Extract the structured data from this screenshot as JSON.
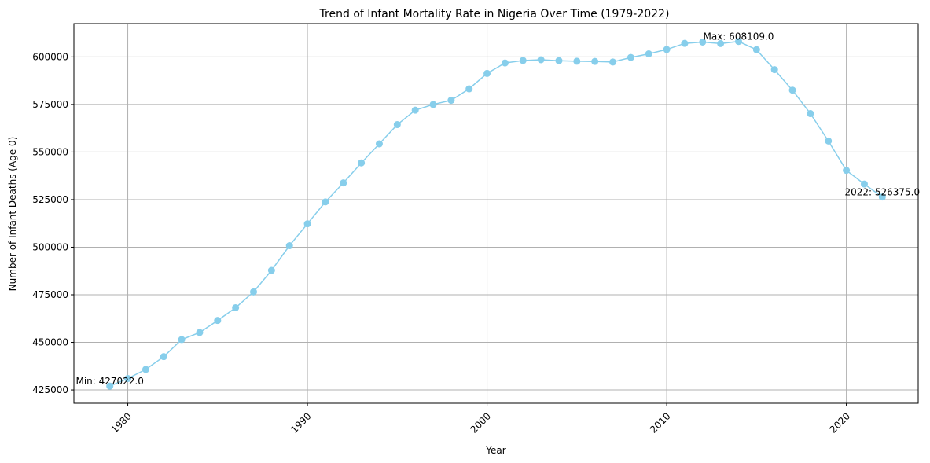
{
  "chart_data": {
    "type": "line",
    "title": "Trend of Infant Mortality Rate in Nigeria Over Time (1979-2022)",
    "xlabel": "Year",
    "ylabel": "Number of Infant Deaths (Age 0)",
    "xlim": [
      1977.0,
      2024.0
    ],
    "ylim": [
      418000,
      617500
    ],
    "xticks": [
      1980,
      1990,
      2000,
      2010,
      2020
    ],
    "yticks": [
      425000,
      450000,
      475000,
      500000,
      525000,
      550000,
      575000,
      600000
    ],
    "grid": true,
    "color": "#87ceeb",
    "marker": "circle",
    "x": [
      1979,
      1980,
      1981,
      1982,
      1983,
      1984,
      1985,
      1986,
      1987,
      1988,
      1989,
      1990,
      1991,
      1992,
      1993,
      1994,
      1995,
      1996,
      1997,
      1998,
      1999,
      2000,
      2001,
      2002,
      2003,
      2004,
      2005,
      2006,
      2007,
      2008,
      2009,
      2010,
      2011,
      2012,
      2013,
      2014,
      2015,
      2016,
      2017,
      2018,
      2019,
      2020,
      2021,
      2022
    ],
    "y": [
      427022,
      431000,
      435800,
      442500,
      451500,
      455200,
      461500,
      468200,
      476500,
      487800,
      500800,
      512300,
      523800,
      533800,
      544300,
      554300,
      564400,
      572000,
      575000,
      577200,
      583200,
      591300,
      596800,
      598100,
      598500,
      598000,
      597700,
      597600,
      597300,
      599700,
      601600,
      603900,
      607100,
      607800,
      607000,
      608109,
      603800,
      593300,
      582500,
      570200,
      555800,
      540400,
      533200,
      526375
    ],
    "annotations": [
      {
        "text": "Min: 427022.0",
        "x": 1979,
        "y": 427022
      },
      {
        "text": "Max: 608109.0",
        "x": 2014,
        "y": 608109
      },
      {
        "text": "2022: 526375.0",
        "x": 2022,
        "y": 526375
      }
    ]
  }
}
